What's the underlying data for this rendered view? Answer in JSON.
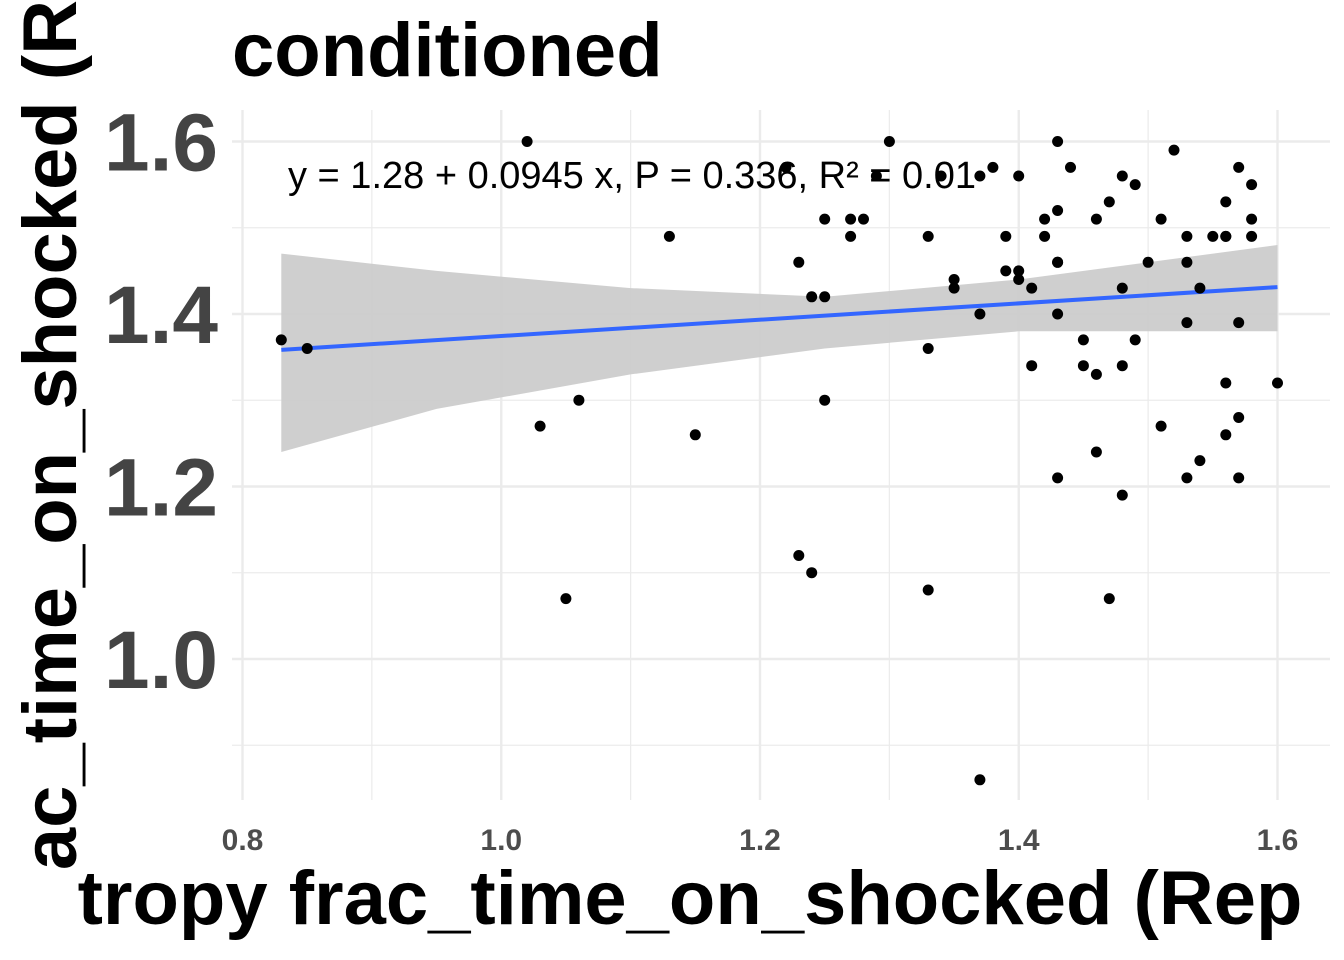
{
  "chart_data": {
    "type": "scatter",
    "title": "conditioned",
    "xlabel": "tropy frac_time_on_shocked (Rep",
    "ylabel": "ac_time_on_shocked (R",
    "xlim": [
      0.78,
      1.61
    ],
    "ylim": [
      0.84,
      1.645
    ],
    "x_ticks": [
      "0.8",
      "1.0",
      "1.2",
      "1.4",
      "1.6"
    ],
    "y_ticks": [
      "1.0",
      "1.2",
      "1.4",
      "1.6"
    ],
    "annotation": "y = 1.28 + 0.0945 x, P = 0.336, R² = 0.01",
    "regression": {
      "intercept": 1.28,
      "slope": 0.0945,
      "x_range": [
        0.83,
        1.6
      ]
    },
    "confidence_band": [
      {
        "x": 0.83,
        "lo": 1.24,
        "hi": 1.47
      },
      {
        "x": 0.95,
        "lo": 1.29,
        "hi": 1.45
      },
      {
        "x": 1.1,
        "lo": 1.33,
        "hi": 1.43
      },
      {
        "x": 1.25,
        "lo": 1.36,
        "hi": 1.42
      },
      {
        "x": 1.4,
        "lo": 1.38,
        "hi": 1.44
      },
      {
        "x": 1.5,
        "lo": 1.38,
        "hi": 1.46
      },
      {
        "x": 1.6,
        "lo": 1.38,
        "hi": 1.48
      }
    ],
    "grid": true,
    "colors": {
      "line": "#3366ff",
      "band": "#cccccc",
      "points": "#000000",
      "grid": "#ebebeb"
    },
    "points": [
      {
        "x": 0.83,
        "y": 1.37
      },
      {
        "x": 0.85,
        "y": 1.36
      },
      {
        "x": 1.02,
        "y": 1.6
      },
      {
        "x": 1.03,
        "y": 1.27
      },
      {
        "x": 1.05,
        "y": 1.07
      },
      {
        "x": 1.06,
        "y": 1.3
      },
      {
        "x": 1.13,
        "y": 1.49
      },
      {
        "x": 1.15,
        "y": 1.26
      },
      {
        "x": 1.22,
        "y": 1.57
      },
      {
        "x": 1.23,
        "y": 1.46
      },
      {
        "x": 1.23,
        "y": 1.12
      },
      {
        "x": 1.24,
        "y": 1.42
      },
      {
        "x": 1.24,
        "y": 1.1
      },
      {
        "x": 1.25,
        "y": 1.51
      },
      {
        "x": 1.25,
        "y": 1.42
      },
      {
        "x": 1.25,
        "y": 1.3
      },
      {
        "x": 1.27,
        "y": 1.49
      },
      {
        "x": 1.27,
        "y": 1.51
      },
      {
        "x": 1.28,
        "y": 1.51
      },
      {
        "x": 1.29,
        "y": 1.56
      },
      {
        "x": 1.3,
        "y": 1.6
      },
      {
        "x": 1.33,
        "y": 1.49
      },
      {
        "x": 1.33,
        "y": 1.36
      },
      {
        "x": 1.33,
        "y": 1.08
      },
      {
        "x": 1.34,
        "y": 1.56
      },
      {
        "x": 1.35,
        "y": 1.44
      },
      {
        "x": 1.35,
        "y": 1.43
      },
      {
        "x": 1.37,
        "y": 1.56
      },
      {
        "x": 1.37,
        "y": 1.4
      },
      {
        "x": 1.37,
        "y": 0.86
      },
      {
        "x": 1.38,
        "y": 1.57
      },
      {
        "x": 1.39,
        "y": 1.49
      },
      {
        "x": 1.39,
        "y": 1.45
      },
      {
        "x": 1.4,
        "y": 1.45
      },
      {
        "x": 1.4,
        "y": 1.56
      },
      {
        "x": 1.4,
        "y": 1.44
      },
      {
        "x": 1.41,
        "y": 1.43
      },
      {
        "x": 1.41,
        "y": 1.34
      },
      {
        "x": 1.42,
        "y": 1.51
      },
      {
        "x": 1.42,
        "y": 1.49
      },
      {
        "x": 1.43,
        "y": 1.6
      },
      {
        "x": 1.43,
        "y": 1.46
      },
      {
        "x": 1.43,
        "y": 1.4
      },
      {
        "x": 1.43,
        "y": 1.46
      },
      {
        "x": 1.43,
        "y": 1.52
      },
      {
        "x": 1.43,
        "y": 1.21
      },
      {
        "x": 1.44,
        "y": 1.57
      },
      {
        "x": 1.45,
        "y": 1.37
      },
      {
        "x": 1.45,
        "y": 1.34
      },
      {
        "x": 1.46,
        "y": 1.24
      },
      {
        "x": 1.46,
        "y": 1.51
      },
      {
        "x": 1.46,
        "y": 1.33
      },
      {
        "x": 1.47,
        "y": 1.53
      },
      {
        "x": 1.47,
        "y": 1.07
      },
      {
        "x": 1.48,
        "y": 1.56
      },
      {
        "x": 1.48,
        "y": 1.34
      },
      {
        "x": 1.48,
        "y": 1.43
      },
      {
        "x": 1.48,
        "y": 1.19
      },
      {
        "x": 1.49,
        "y": 1.55
      },
      {
        "x": 1.49,
        "y": 1.37
      },
      {
        "x": 1.5,
        "y": 1.46
      },
      {
        "x": 1.51,
        "y": 1.51
      },
      {
        "x": 1.51,
        "y": 1.27
      },
      {
        "x": 1.52,
        "y": 1.59
      },
      {
        "x": 1.53,
        "y": 1.46
      },
      {
        "x": 1.53,
        "y": 1.49
      },
      {
        "x": 1.53,
        "y": 1.39
      },
      {
        "x": 1.53,
        "y": 1.21
      },
      {
        "x": 1.54,
        "y": 1.43
      },
      {
        "x": 1.54,
        "y": 1.23
      },
      {
        "x": 1.55,
        "y": 1.49
      },
      {
        "x": 1.56,
        "y": 1.49
      },
      {
        "x": 1.56,
        "y": 1.53
      },
      {
        "x": 1.56,
        "y": 1.49
      },
      {
        "x": 1.56,
        "y": 1.32
      },
      {
        "x": 1.56,
        "y": 1.26
      },
      {
        "x": 1.57,
        "y": 1.39
      },
      {
        "x": 1.57,
        "y": 1.28
      },
      {
        "x": 1.57,
        "y": 1.21
      },
      {
        "x": 1.57,
        "y": 1.57
      },
      {
        "x": 1.58,
        "y": 1.51
      },
      {
        "x": 1.58,
        "y": 1.55
      },
      {
        "x": 1.58,
        "y": 1.49
      },
      {
        "x": 1.6,
        "y": 1.32
      }
    ]
  }
}
